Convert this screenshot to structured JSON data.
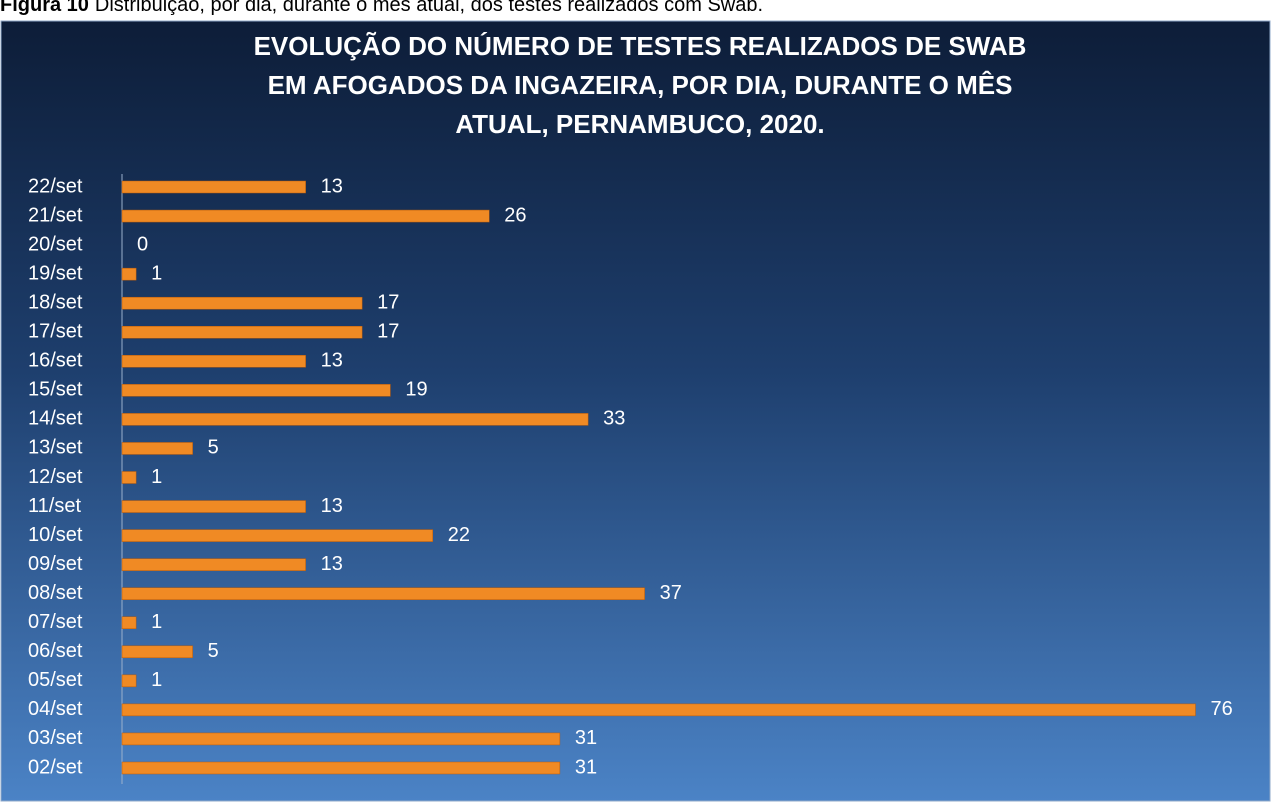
{
  "caption": {
    "label": "Figura 10",
    "text": "Distribuição, por dia, durante o mês atual, dos testes realizados com Swab."
  },
  "chart_data": {
    "type": "hbar",
    "title": [
      "EVOLUÇÃO DO NÚMERO DE TESTES REALIZADOS DE SWAB",
      "EM AFOGADOS DA INGAZEIRA, POR DIA, DURANTE O MÊS",
      "ATUAL, PERNAMBUCO, 2020."
    ],
    "categories": [
      "02/set",
      "03/set",
      "04/set",
      "05/set",
      "06/set",
      "07/set",
      "08/set",
      "09/set",
      "10/set",
      "11/set",
      "12/set",
      "13/set",
      "14/set",
      "15/set",
      "16/set",
      "17/set",
      "18/set",
      "19/set",
      "20/set",
      "21/set",
      "22/set"
    ],
    "values": [
      31,
      31,
      76,
      1,
      5,
      1,
      37,
      13,
      22,
      13,
      1,
      5,
      33,
      19,
      13,
      17,
      17,
      1,
      0,
      26,
      13
    ],
    "color": "#f08a24",
    "xlim": [
      0,
      80
    ]
  }
}
